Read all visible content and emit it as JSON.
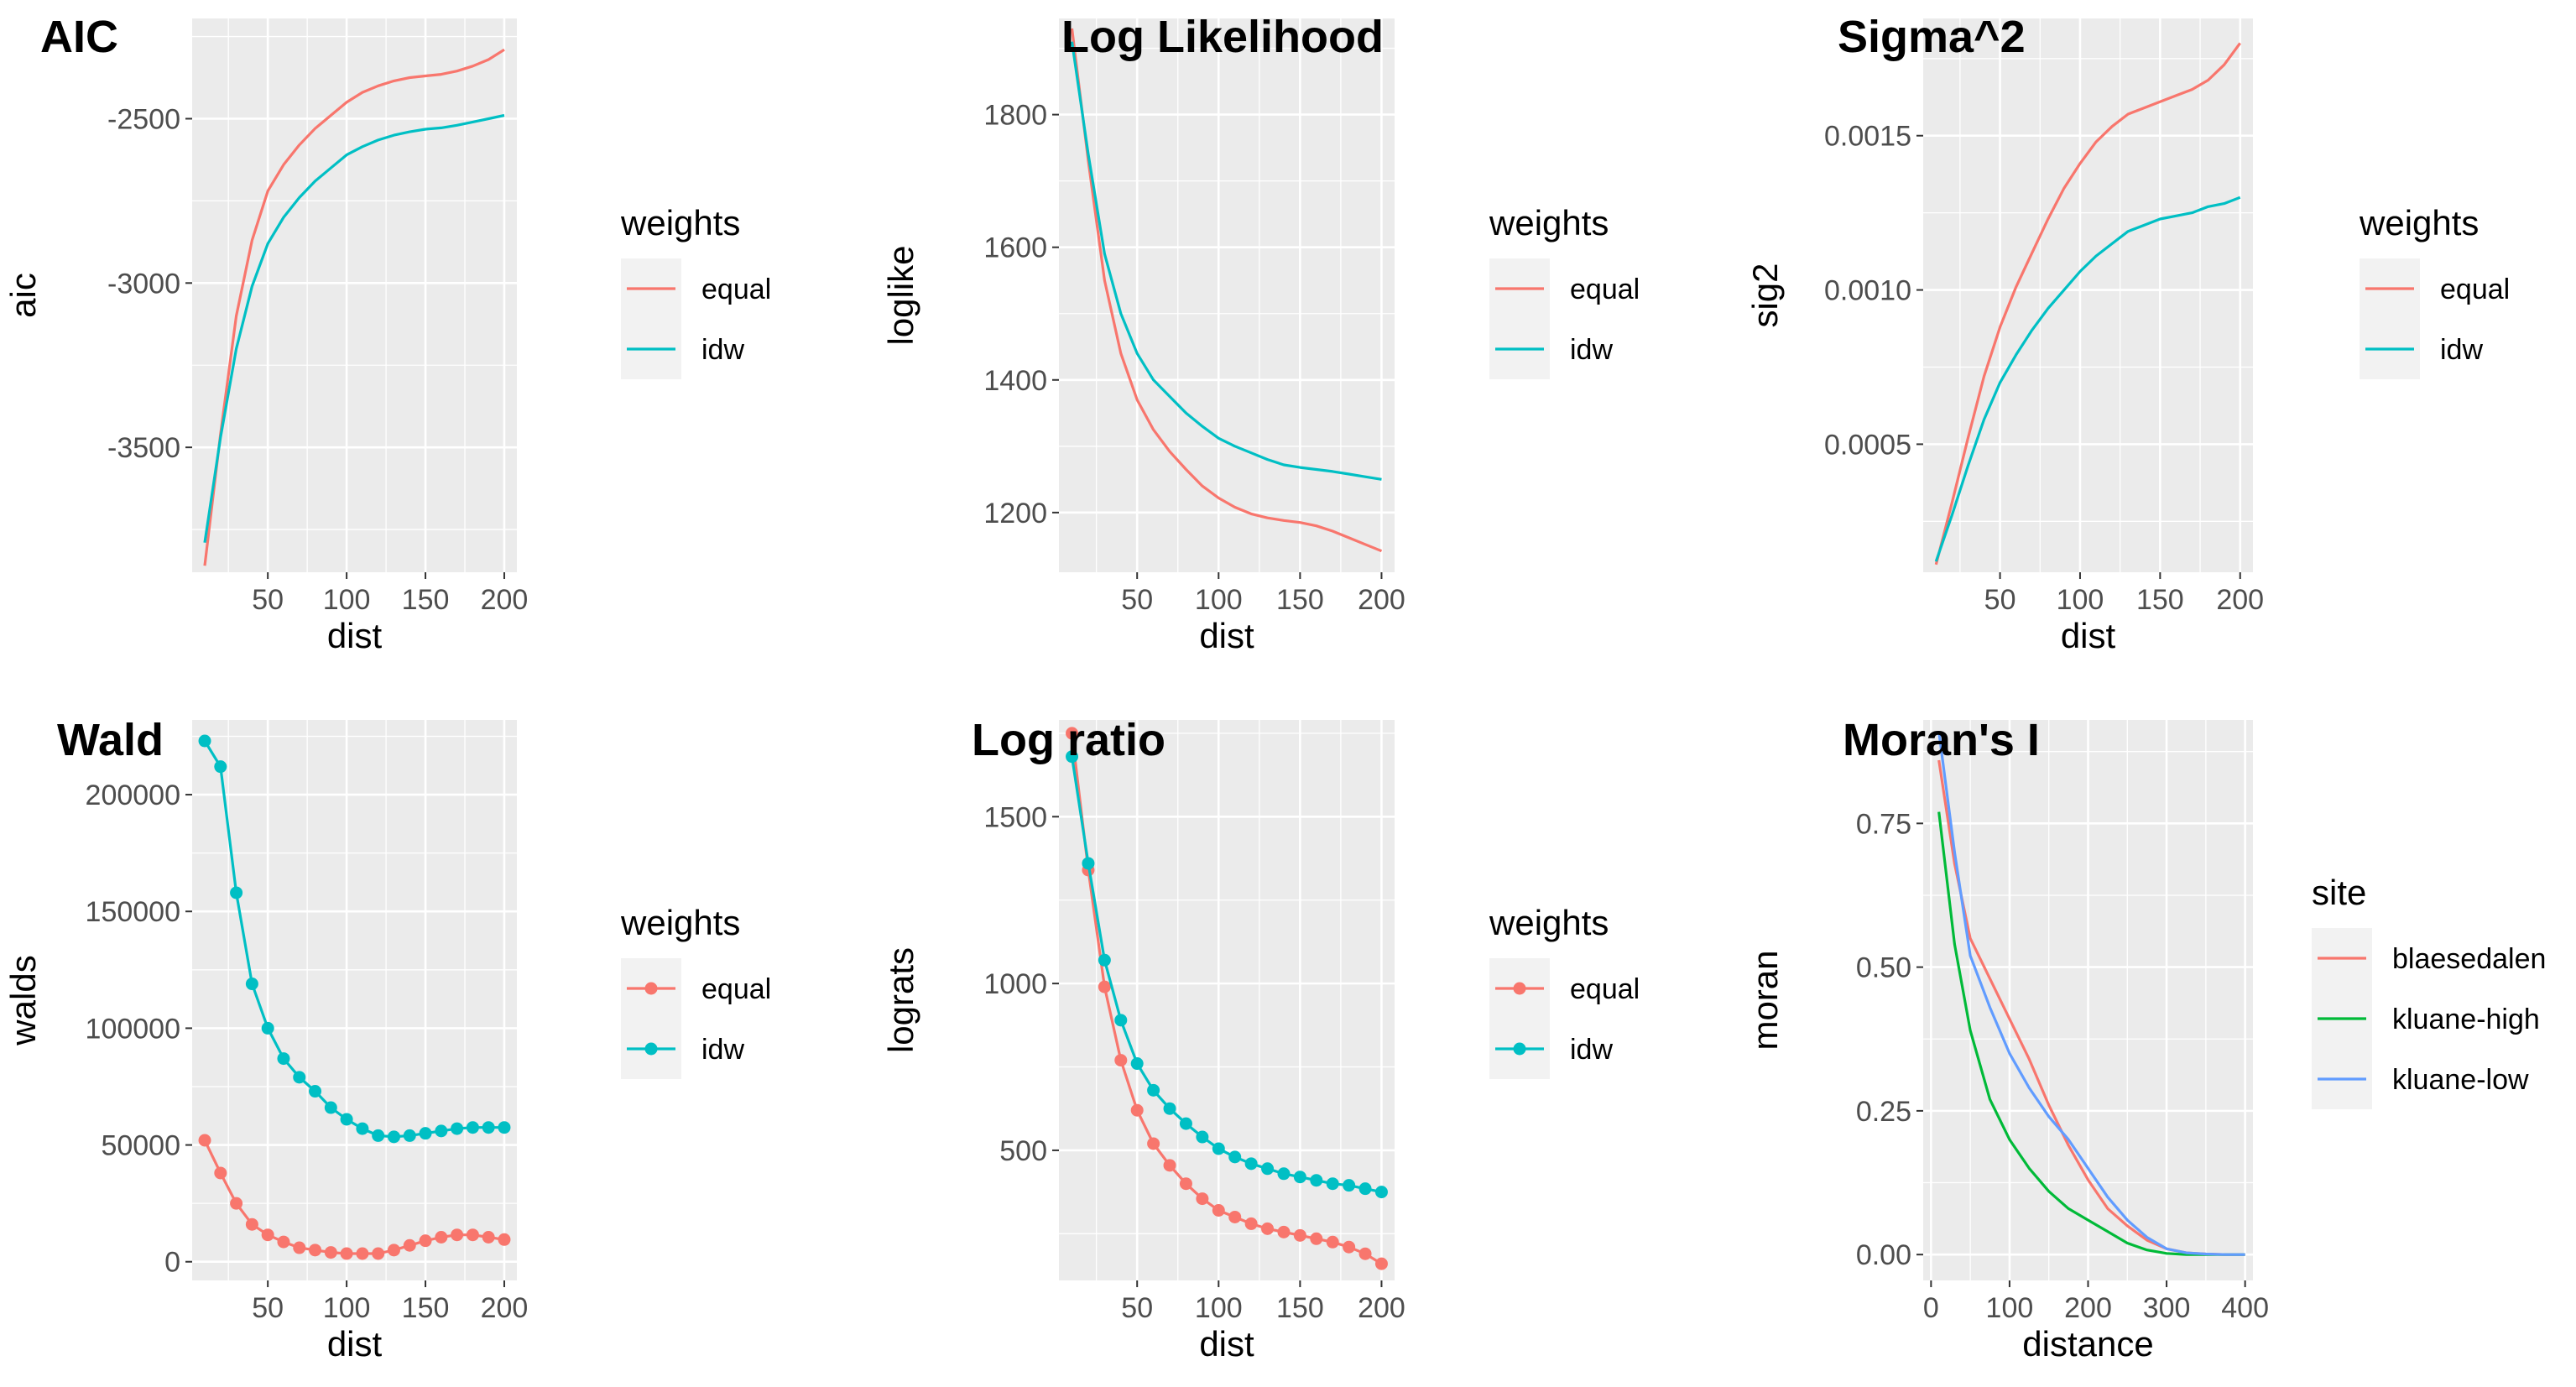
{
  "colors": {
    "equal": "#F8766D",
    "idw": "#00BFC4",
    "blaesedalen": "#F8766D",
    "kluane-high": "#00BA38",
    "kluane-low": "#619CFF",
    "panel_bg": "#EBEBEB",
    "grid": "#FFFFFF"
  },
  "chart_data": [
    {
      "type": "line",
      "title": "AIC",
      "xlabel": "dist",
      "ylabel": "aic",
      "xlim": [
        2,
        208
      ],
      "ylim": [
        -3880,
        -2195
      ],
      "xticks": [
        50,
        100,
        150,
        200
      ],
      "yticks": [
        -3500,
        -3000,
        -2500
      ],
      "ytick_labels": [
        "-3500",
        "-3000",
        "-2500"
      ],
      "legend": {
        "title": "weights",
        "position": "right"
      },
      "x": [
        10,
        20,
        30,
        40,
        50,
        60,
        70,
        80,
        90,
        100,
        110,
        120,
        130,
        140,
        150,
        160,
        170,
        180,
        190,
        200
      ],
      "series": [
        {
          "name": "equal",
          "marker": false,
          "values": [
            -3860,
            -3460,
            -3100,
            -2870,
            -2720,
            -2640,
            -2580,
            -2530,
            -2490,
            -2450,
            -2420,
            -2400,
            -2385,
            -2375,
            -2370,
            -2365,
            -2355,
            -2340,
            -2320,
            -2290
          ]
        },
        {
          "name": "idw",
          "marker": false,
          "values": [
            -3790,
            -3470,
            -3200,
            -3010,
            -2880,
            -2800,
            -2740,
            -2690,
            -2650,
            -2610,
            -2585,
            -2565,
            -2550,
            -2540,
            -2532,
            -2528,
            -2520,
            -2510,
            -2500,
            -2490
          ]
        }
      ]
    },
    {
      "type": "line",
      "title": "Log Likelihood",
      "xlabel": "dist",
      "ylabel": "loglike",
      "xlim": [
        2,
        208
      ],
      "ylim": [
        1110,
        1945
      ],
      "xticks": [
        50,
        100,
        150,
        200
      ],
      "yticks": [
        1200,
        1400,
        1600,
        1800
      ],
      "ytick_labels": [
        "1200",
        "1400",
        "1600",
        "1800"
      ],
      "legend": {
        "title": "weights",
        "position": "right"
      },
      "x": [
        10,
        20,
        30,
        40,
        50,
        60,
        70,
        80,
        90,
        100,
        110,
        120,
        130,
        140,
        150,
        160,
        170,
        180,
        190,
        200
      ],
      "series": [
        {
          "name": "equal",
          "marker": false,
          "values": [
            1930,
            1730,
            1550,
            1440,
            1370,
            1325,
            1292,
            1265,
            1240,
            1222,
            1208,
            1198,
            1192,
            1188,
            1185,
            1180,
            1172,
            1162,
            1152,
            1142
          ]
        },
        {
          "name": "idw",
          "marker": false,
          "values": [
            1910,
            1740,
            1590,
            1500,
            1440,
            1400,
            1375,
            1350,
            1330,
            1312,
            1300,
            1290,
            1280,
            1272,
            1268,
            1265,
            1262,
            1258,
            1254,
            1250
          ]
        }
      ]
    },
    {
      "type": "line",
      "title": "Sigma^2",
      "xlabel": "dist",
      "ylabel": "sig2",
      "xlim": [
        2,
        208
      ],
      "ylim": [
        8.5e-05,
        0.00188
      ],
      "xticks": [
        50,
        100,
        150,
        200
      ],
      "yticks": [
        0.0005,
        0.001,
        0.0015
      ],
      "ytick_labels": [
        "0.0005",
        "0.0010",
        "0.0015"
      ],
      "legend": {
        "title": "weights",
        "position": "right"
      },
      "x": [
        10,
        20,
        30,
        40,
        50,
        60,
        70,
        80,
        90,
        100,
        110,
        120,
        130,
        140,
        150,
        160,
        170,
        180,
        190,
        200
      ],
      "series": [
        {
          "name": "equal",
          "marker": false,
          "values": [
            0.00011,
            0.00031,
            0.00052,
            0.00072,
            0.00088,
            0.00101,
            0.00112,
            0.00123,
            0.00133,
            0.00141,
            0.00148,
            0.00153,
            0.00157,
            0.00159,
            0.00161,
            0.00163,
            0.00165,
            0.00168,
            0.00173,
            0.0018
          ]
        },
        {
          "name": "idw",
          "marker": false,
          "values": [
            0.00012,
            0.00027,
            0.00043,
            0.00058,
            0.0007,
            0.00079,
            0.00087,
            0.00094,
            0.001,
            0.00106,
            0.00111,
            0.00115,
            0.00119,
            0.00121,
            0.00123,
            0.00124,
            0.00125,
            0.00127,
            0.00128,
            0.0013
          ]
        }
      ]
    },
    {
      "type": "line",
      "title": "Wald",
      "xlabel": "dist",
      "ylabel": "walds",
      "xlim": [
        2,
        208
      ],
      "ylim": [
        -8000,
        232000
      ],
      "xticks": [
        50,
        100,
        150,
        200
      ],
      "yticks": [
        0,
        50000,
        100000,
        150000,
        200000
      ],
      "ytick_labels": [
        "0",
        "50000",
        "100000",
        "150000",
        "200000"
      ],
      "legend": {
        "title": "weights",
        "position": "right"
      },
      "x": [
        10,
        20,
        30,
        40,
        50,
        60,
        70,
        80,
        90,
        100,
        110,
        120,
        130,
        140,
        150,
        160,
        170,
        180,
        190,
        200
      ],
      "series": [
        {
          "name": "equal",
          "marker": true,
          "values": [
            52000,
            38000,
            25000,
            16000,
            11500,
            8500,
            6000,
            5000,
            4000,
            3500,
            3500,
            3500,
            5000,
            7000,
            9000,
            10500,
            11500,
            11500,
            10500,
            9500
          ]
        },
        {
          "name": "idw",
          "marker": true,
          "values": [
            223000,
            212000,
            158000,
            119000,
            100000,
            87000,
            79000,
            73000,
            66000,
            61000,
            57000,
            54000,
            53500,
            54000,
            55000,
            56000,
            57000,
            57500,
            57500,
            57500
          ]
        }
      ]
    },
    {
      "type": "line",
      "title": "Log ratio",
      "xlabel": "dist",
      "ylabel": "lograts",
      "xlim": [
        2,
        208
      ],
      "ylim": [
        110,
        1790
      ],
      "xticks": [
        50,
        100,
        150,
        200
      ],
      "yticks": [
        500,
        1000,
        1500
      ],
      "ytick_labels": [
        "500",
        "1000",
        "1500"
      ],
      "legend": {
        "title": "weights",
        "position": "right"
      },
      "x": [
        10,
        20,
        30,
        40,
        50,
        60,
        70,
        80,
        90,
        100,
        110,
        120,
        130,
        140,
        150,
        160,
        170,
        180,
        190,
        200
      ],
      "series": [
        {
          "name": "equal",
          "marker": true,
          "values": [
            1750,
            1340,
            990,
            770,
            620,
            520,
            455,
            400,
            355,
            320,
            300,
            280,
            265,
            255,
            245,
            235,
            225,
            210,
            190,
            160
          ]
        },
        {
          "name": "idw",
          "marker": true,
          "values": [
            1680,
            1360,
            1070,
            890,
            760,
            680,
            625,
            580,
            540,
            505,
            480,
            460,
            445,
            430,
            420,
            410,
            400,
            395,
            385,
            375
          ]
        }
      ]
    },
    {
      "type": "line",
      "title": "Moran's I",
      "xlabel": "distance",
      "ylabel": "moran",
      "xlim": [
        -10,
        410
      ],
      "ylim": [
        -0.045,
        0.93
      ],
      "xticks": [
        0,
        100,
        200,
        300,
        400
      ],
      "yticks": [
        0,
        0.25,
        0.5,
        0.75
      ],
      "ytick_labels": [
        "0.00",
        "0.25",
        "0.50",
        "0.75"
      ],
      "legend": {
        "title": "site",
        "position": "right"
      },
      "x": [
        10,
        30,
        50,
        75,
        100,
        125,
        150,
        175,
        200,
        225,
        250,
        275,
        300,
        325,
        350,
        375,
        400
      ],
      "series": [
        {
          "name": "blaesedalen",
          "marker": false,
          "values": [
            0.86,
            0.68,
            0.55,
            0.48,
            0.41,
            0.34,
            0.26,
            0.19,
            0.13,
            0.08,
            0.05,
            0.025,
            0.01,
            0.003,
            0.001,
            0.0,
            0.0
          ]
        },
        {
          "name": "kluane-high",
          "marker": false,
          "values": [
            0.77,
            0.54,
            0.39,
            0.27,
            0.2,
            0.15,
            0.11,
            0.08,
            0.06,
            0.04,
            0.02,
            0.008,
            0.002,
            0.0,
            0.0,
            0.0,
            0.0
          ]
        },
        {
          "name": "kluane-low",
          "marker": false,
          "values": [
            0.91,
            0.7,
            0.52,
            0.43,
            0.35,
            0.29,
            0.24,
            0.2,
            0.15,
            0.1,
            0.06,
            0.03,
            0.01,
            0.003,
            0.001,
            0.0,
            0.0
          ]
        }
      ]
    }
  ]
}
